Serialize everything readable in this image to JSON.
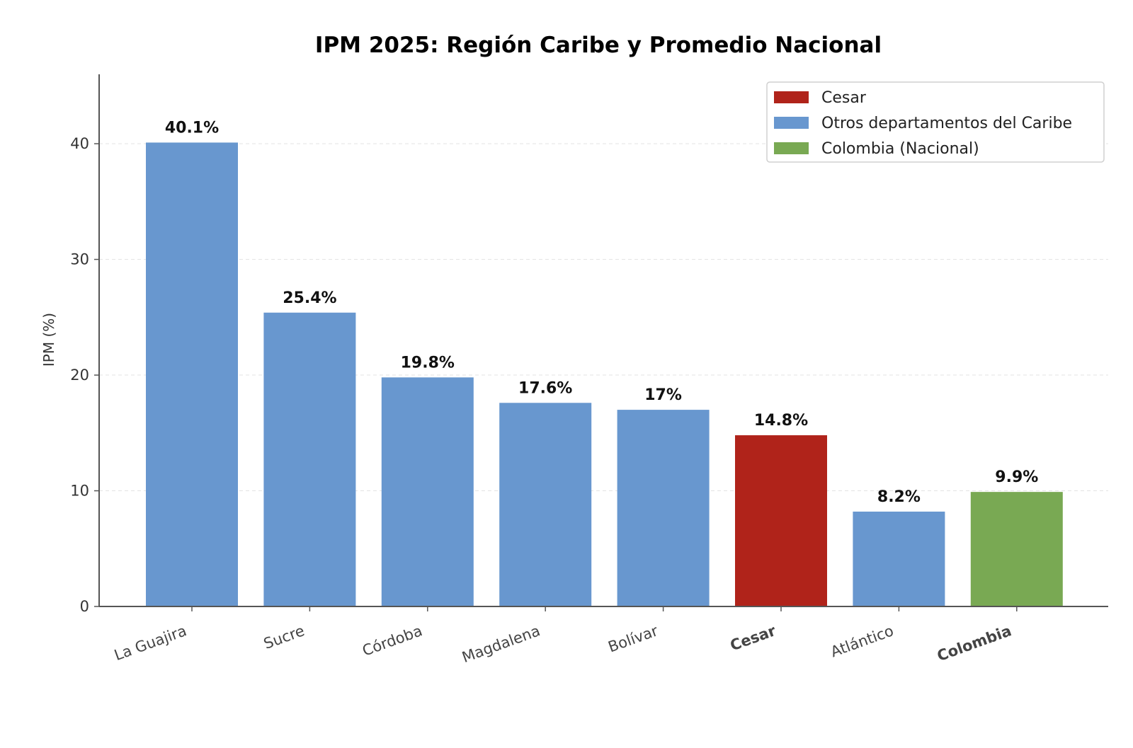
{
  "chart_data": {
    "type": "bar",
    "title": "IPM 2025: Región Caribe y Promedio Nacional",
    "xlabel": "",
    "ylabel": "IPM (%)",
    "ylim": [
      0,
      46
    ],
    "yticks": [
      0,
      10,
      20,
      30,
      40
    ],
    "grid": "horizontal dashed",
    "legend_position": "top-right",
    "categories": [
      "La Guajira",
      "Sucre",
      "Córdoba",
      "Magdalena",
      "Bolívar",
      "Cesar",
      "Atlántico",
      "Colombia"
    ],
    "values": [
      40.1,
      25.4,
      19.8,
      17.6,
      17,
      14.8,
      8.2,
      9.9
    ],
    "value_labels": [
      "40.1%",
      "25.4%",
      "19.8%",
      "17.6%",
      "17%",
      "14.8%",
      "8.2%",
      "9.9%"
    ],
    "groups": [
      "otros",
      "otros",
      "otros",
      "otros",
      "otros",
      "cesar",
      "otros",
      "nacional"
    ],
    "legend": [
      {
        "key": "cesar",
        "label": "Cesar",
        "color": "#b0231a"
      },
      {
        "key": "otros",
        "label": "Otros departamentos del Caribe",
        "color": "#6897cf"
      },
      {
        "key": "nacional",
        "label": "Colombia (Nacional)",
        "color": "#79a953"
      }
    ],
    "highlight_labels": {
      "Cesar": "#b0231a",
      "Colombia": "#79a953"
    }
  }
}
